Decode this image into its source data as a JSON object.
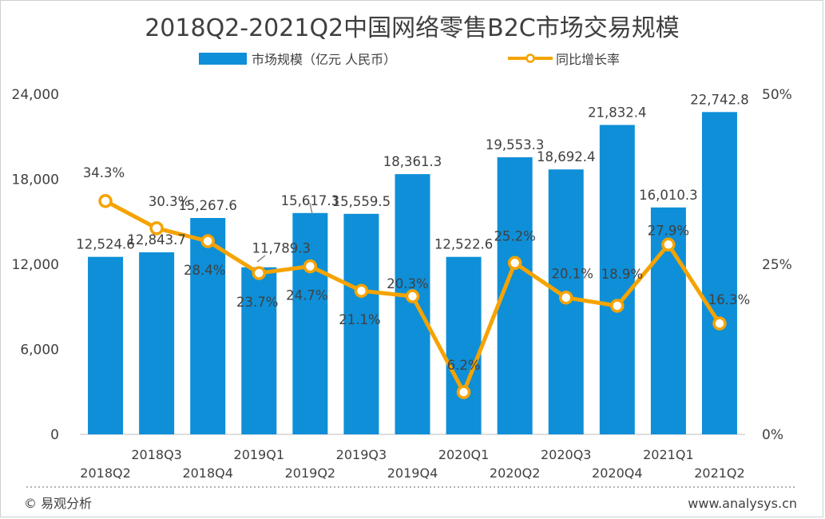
{
  "chart_data": {
    "type": "bar",
    "title": "2018Q2-2021Q2中国网络零售B2C市场交易规模",
    "categories": [
      "2018Q2",
      "2018Q3",
      "2018Q4",
      "2019Q1",
      "2019Q2",
      "2019Q3",
      "2019Q4",
      "2020Q1",
      "2020Q2",
      "2020Q3",
      "2020Q4",
      "2021Q1",
      "2021Q2"
    ],
    "series": [
      {
        "name": "市场规模（亿元 人民币）",
        "type": "bar",
        "axis": "left",
        "color": "#0e8fd8",
        "values": [
          12524.6,
          12843.7,
          15267.6,
          11789.3,
          15617.3,
          15559.5,
          18361.3,
          12522.6,
          19553.3,
          18692.4,
          21832.4,
          16010.3,
          22742.8
        ],
        "labels": [
          "12,524.6",
          "12,843.7",
          "15,267.6",
          "11,789.3",
          "15,617.3",
          "15,559.5",
          "18,361.3",
          "12,522.6",
          "19,553.3",
          "18,692.4",
          "21,832.4",
          "16,010.3",
          "22,742.8"
        ]
      },
      {
        "name": "同比增长率",
        "type": "line",
        "axis": "right",
        "color": "#f5a300",
        "values": [
          34.3,
          30.3,
          28.4,
          23.7,
          24.7,
          21.1,
          20.3,
          6.2,
          25.2,
          20.1,
          18.9,
          27.9,
          16.3
        ],
        "labels": [
          "34.3%",
          "30.3%",
          "28.4%",
          "23.7%",
          "24.7%",
          "21.1%",
          "20.3%",
          "6.2%",
          "25.2%",
          "20.1%",
          "18.9%",
          "27.9%",
          "16.3%"
        ]
      }
    ],
    "y_left": {
      "min": 0,
      "max": 24000,
      "ticks": [
        0,
        6000,
        12000,
        18000,
        24000
      ],
      "tick_labels": [
        "0",
        "6,000",
        "12,000",
        "18,000",
        "24,000"
      ]
    },
    "y_right": {
      "min": 0,
      "max": 50,
      "ticks": [
        0,
        25,
        50
      ],
      "tick_labels": [
        "0%",
        "25%",
        "50%"
      ]
    },
    "legend_position": "top-center",
    "grid": false
  },
  "footer": {
    "left": "© 易观分析",
    "right": "www.analysys.cn"
  }
}
